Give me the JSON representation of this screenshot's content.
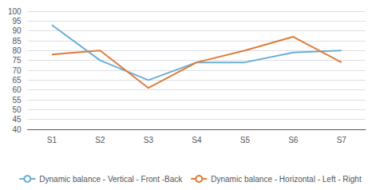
{
  "chart_data": {
    "type": "line",
    "categories": [
      "S1",
      "S2",
      "S3",
      "S4",
      "S5",
      "S6",
      "S7"
    ],
    "series": [
      {
        "name": "Dynamic balance - Vertical - Front -Back",
        "color": "#6baed6",
        "values": [
          93,
          75,
          65,
          74,
          74,
          79,
          80
        ]
      },
      {
        "name": "Dynamic balance - Horizontal - Left - Right",
        "color": "#e07b39",
        "values": [
          78,
          80,
          61,
          74,
          80,
          87,
          74
        ]
      }
    ],
    "ylim": [
      40,
      100
    ],
    "yticks": [
      40,
      45,
      50,
      55,
      60,
      65,
      70,
      75,
      80,
      85,
      90,
      95,
      100
    ],
    "grid": true,
    "legend": "bottom"
  }
}
